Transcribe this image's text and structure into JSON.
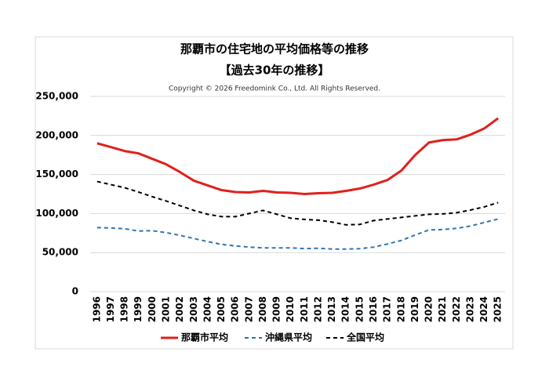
{
  "chart_data": {
    "type": "line",
    "title": "那覇市の住宅地の平均価格等の推移",
    "subtitle": "【過去30年の推移】",
    "copyright": "Copyright © 2026 Freedomink Co., Ltd. All Rights Reserved.",
    "categories": [
      "1996",
      "1997",
      "1998",
      "1999",
      "2000",
      "2001",
      "2002",
      "2003",
      "2004",
      "2005",
      "2006",
      "2007",
      "2008",
      "2009",
      "2010",
      "2011",
      "2012",
      "2013",
      "2014",
      "2015",
      "2016",
      "2017",
      "2018",
      "2019",
      "2020",
      "2021",
      "2022",
      "2023",
      "2024",
      "2025"
    ],
    "series": [
      {
        "name": "那覇市平均",
        "color": "#e0201b",
        "dash": "solid",
        "values": [
          190000,
          185000,
          180000,
          177000,
          170000,
          163000,
          153000,
          142000,
          136000,
          130000,
          127500,
          127000,
          129000,
          127000,
          126500,
          125000,
          126000,
          126500,
          129000,
          132000,
          137000,
          143000,
          155000,
          175000,
          191000,
          194000,
          195000,
          201000,
          209000,
          222000
        ]
      },
      {
        "name": "沖縄県平均",
        "color": "#2e75b6",
        "dash": "dashed",
        "values": [
          82000,
          81500,
          80500,
          77500,
          78000,
          75500,
          72000,
          68000,
          64000,
          60500,
          58500,
          57000,
          56000,
          56000,
          56000,
          55000,
          55500,
          54500,
          54500,
          55000,
          57000,
          61000,
          65500,
          72500,
          79000,
          79500,
          81000,
          84000,
          88500,
          93000
        ]
      },
      {
        "name": "全国平均",
        "color": "#000000",
        "dash": "dashed",
        "values": [
          141000,
          137000,
          133000,
          127500,
          121500,
          116000,
          110000,
          104000,
          99000,
          96000,
          96000,
          100000,
          104000,
          99000,
          94000,
          92500,
          91500,
          89000,
          85500,
          86000,
          91000,
          93000,
          95000,
          97000,
          99000,
          99500,
          101000,
          104500,
          108500,
          114000
        ]
      }
    ],
    "ylim": [
      0,
      250000
    ],
    "yticks": [
      0,
      {
        "value": 50000,
        "label": "50,000"
      },
      {
        "value": 100000,
        "label": "100,000"
      },
      {
        "value": 150000,
        "label": "150,000"
      },
      {
        "value": 200000,
        "label": "200,000"
      },
      {
        "value": 250000,
        "label": "250,000"
      }
    ],
    "grid": true,
    "legend": "bottom"
  }
}
